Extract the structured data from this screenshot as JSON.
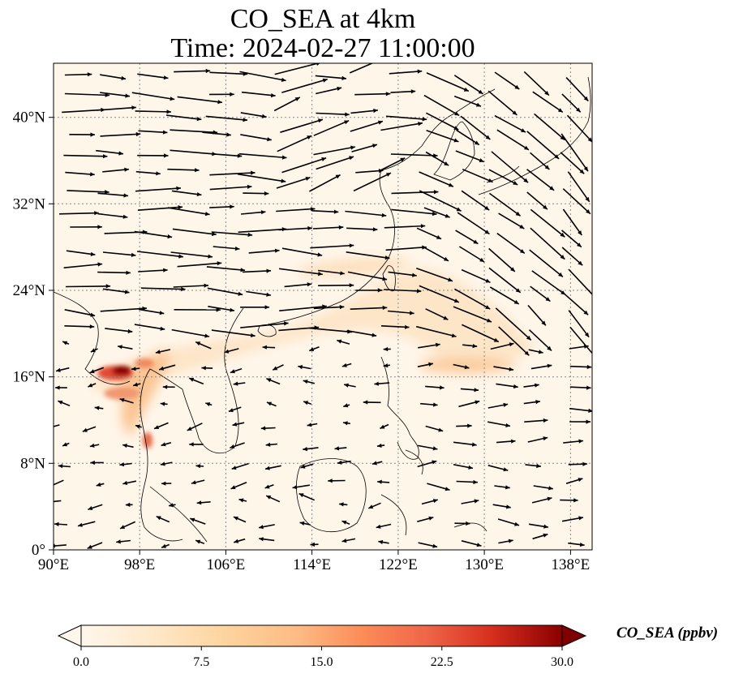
{
  "title": {
    "line1": "CO_SEA at 4km",
    "line2": "Time: 2024-02-27 11:00:00"
  },
  "map": {
    "lon_range": [
      90,
      140
    ],
    "lat_range": [
      0,
      45
    ],
    "lon_ticks": [
      "90°E",
      "98°E",
      "106°E",
      "114°E",
      "122°E",
      "130°E",
      "138°E"
    ],
    "lat_ticks": [
      "0°",
      "8°N",
      "16°N",
      "24°N",
      "32°N",
      "40°N"
    ],
    "gridlines": "dotted"
  },
  "colorbar": {
    "label": "CO_SEA (ppbv)",
    "ticks": [
      "0.0",
      "7.5",
      "15.0",
      "22.5",
      "30.0"
    ],
    "min": 0,
    "max": 30,
    "colormap": "OrRd",
    "extend": "both"
  },
  "colors": {
    "background_field": "#fff6ea",
    "grid": "#888888",
    "coastline": "#000000"
  }
}
